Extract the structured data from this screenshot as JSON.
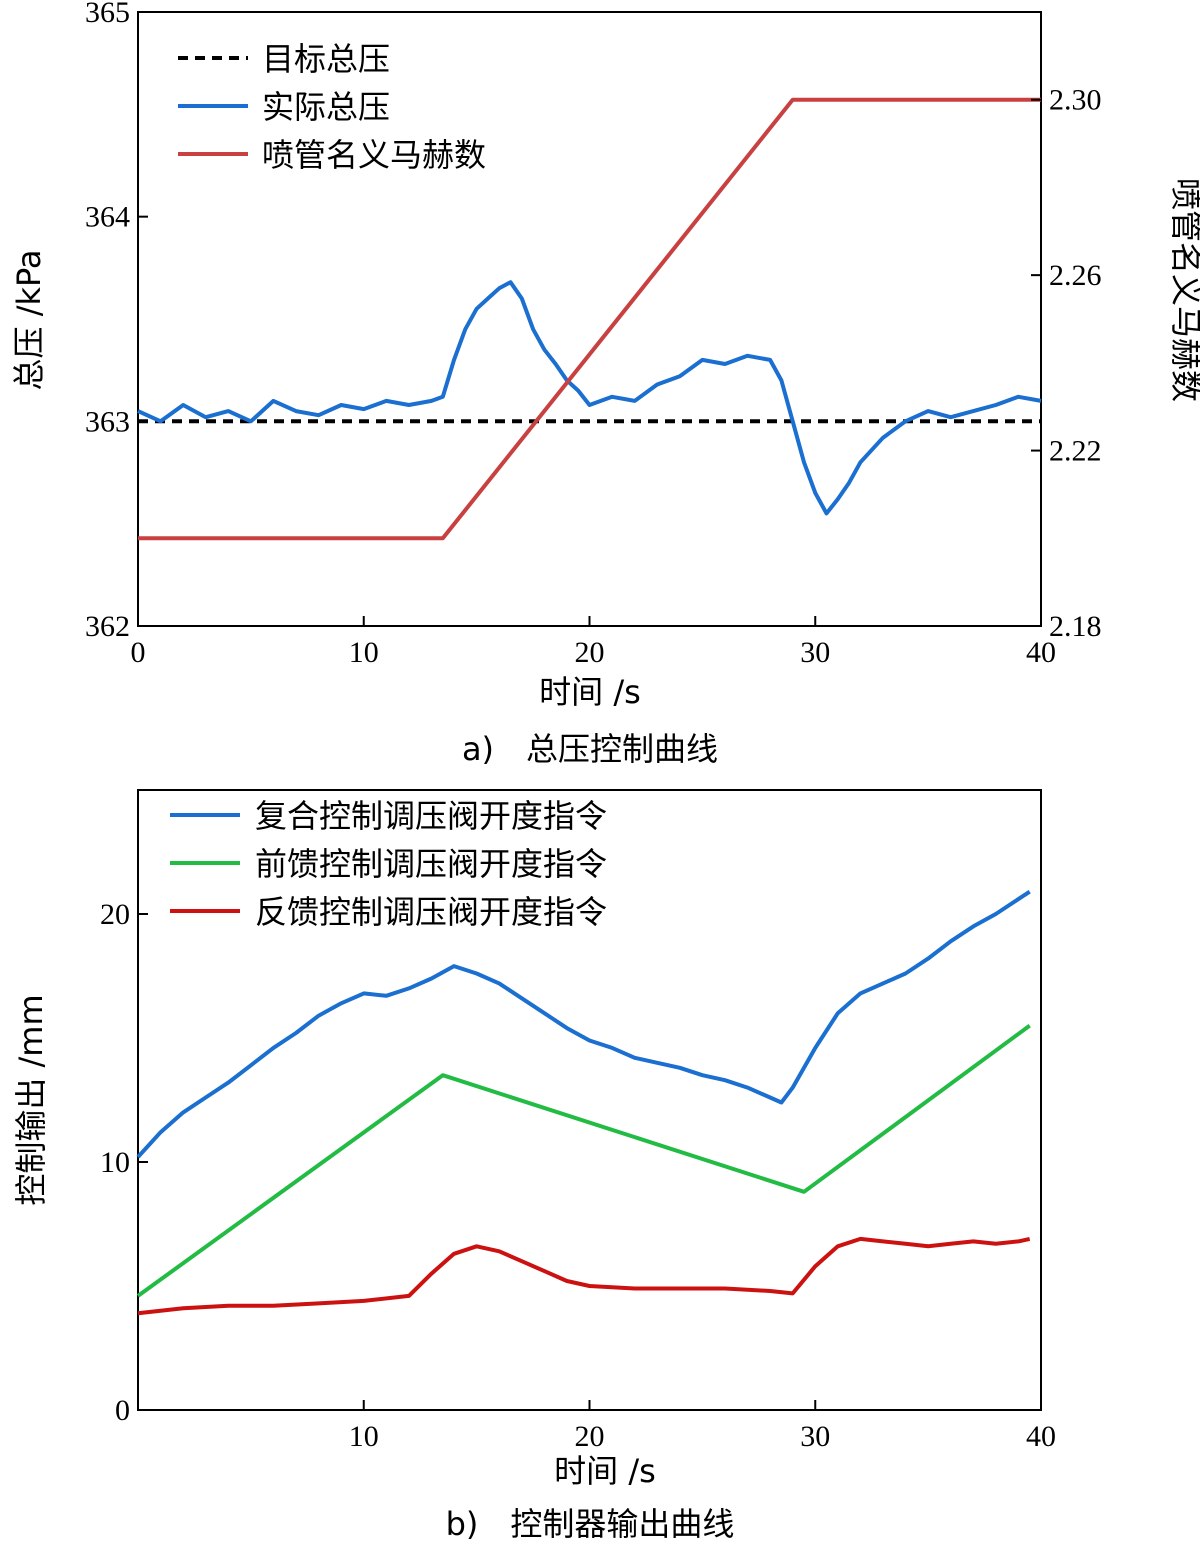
{
  "chart_data": [
    {
      "type": "line",
      "caption": "a)　总压控制曲线",
      "xlabel": "时间 /s",
      "ylabel": "总压 /kPa",
      "y2label": "喷管名义马赫数",
      "xlim": [
        0,
        40
      ],
      "ylim": [
        362,
        365
      ],
      "y2lim": [
        2.18,
        2.32
      ],
      "xticks": [
        "0",
        "10",
        "20",
        "30",
        "40"
      ],
      "yticks": [
        "362",
        "363",
        "364",
        "365"
      ],
      "y2ticks": [
        "2.18",
        "2.22",
        "2.26",
        "2.30"
      ],
      "legend_position": "top-left",
      "grid": false,
      "series": [
        {
          "name": "目标总压",
          "axis": "left",
          "color": "#000000",
          "style": "dashed",
          "x": [
            0,
            40
          ],
          "y": [
            363.0,
            363.0
          ]
        },
        {
          "name": "实际总压",
          "axis": "left",
          "color": "#1a6fd0",
          "style": "solid",
          "x": [
            0,
            1,
            2,
            3,
            4,
            5,
            6,
            7,
            8,
            9,
            10,
            11,
            12,
            13,
            13.5,
            14,
            14.5,
            15,
            15.5,
            16,
            16.5,
            17,
            17.5,
            18,
            18.5,
            19,
            19.5,
            20,
            21,
            22,
            23,
            24,
            25,
            26,
            27,
            28,
            28.5,
            29,
            29.5,
            30,
            30.5,
            31,
            31.5,
            32,
            33,
            34,
            35,
            36,
            37,
            38,
            39,
            40
          ],
          "y": [
            363.05,
            363.0,
            363.08,
            363.02,
            363.05,
            363.0,
            363.1,
            363.05,
            363.03,
            363.08,
            363.06,
            363.1,
            363.08,
            363.1,
            363.12,
            363.3,
            363.45,
            363.55,
            363.6,
            363.65,
            363.68,
            363.6,
            363.45,
            363.35,
            363.28,
            363.2,
            363.15,
            363.08,
            363.12,
            363.1,
            363.18,
            363.22,
            363.3,
            363.28,
            363.32,
            363.3,
            363.2,
            363.0,
            362.8,
            362.65,
            362.55,
            362.62,
            362.7,
            362.8,
            362.92,
            363.0,
            363.05,
            363.02,
            363.05,
            363.08,
            363.12,
            363.1
          ]
        },
        {
          "name": "喷管名义马赫数",
          "axis": "right",
          "color": "#c84040",
          "style": "solid",
          "x": [
            0,
            13.5,
            29,
            40
          ],
          "y": [
            2.2,
            2.2,
            2.3,
            2.3
          ]
        }
      ]
    },
    {
      "type": "line",
      "caption": "b)　控制器输出曲线",
      "xlabel": "时间 /s",
      "ylabel": "控制输出 /mm",
      "xlim": [
        0,
        40
      ],
      "ylim": [
        0,
        25
      ],
      "xticks": [
        "10",
        "20",
        "30",
        "40"
      ],
      "yticks": [
        "0",
        "10",
        "20"
      ],
      "legend_position": "top-left",
      "grid": false,
      "series": [
        {
          "name": "复合控制调压阀开度指令",
          "color": "#1a6fd0",
          "x": [
            0,
            1,
            2,
            3,
            4,
            5,
            6,
            7,
            8,
            9,
            10,
            11,
            12,
            13,
            14,
            15,
            16,
            17,
            18,
            19,
            20,
            21,
            22,
            23,
            24,
            25,
            26,
            27,
            28,
            28.5,
            29,
            30,
            31,
            32,
            33,
            34,
            35,
            36,
            37,
            38,
            39,
            39.5
          ],
          "y": [
            10.2,
            11.2,
            12.0,
            12.6,
            13.2,
            13.9,
            14.6,
            15.2,
            15.9,
            16.4,
            16.8,
            16.7,
            17.0,
            17.4,
            17.9,
            17.6,
            17.2,
            16.6,
            16.0,
            15.4,
            14.9,
            14.6,
            14.2,
            14.0,
            13.8,
            13.5,
            13.3,
            13.0,
            12.6,
            12.4,
            13.0,
            14.6,
            16.0,
            16.8,
            17.2,
            17.6,
            18.2,
            18.9,
            19.5,
            20.0,
            20.6,
            20.9
          ]
        },
        {
          "name": "前馈控制调压阀开度指令",
          "color": "#22bb44",
          "x": [
            0,
            13.5,
            29.5,
            39.5
          ],
          "y": [
            4.6,
            13.5,
            8.8,
            15.5
          ]
        },
        {
          "name": "反馈控制调压阀开度指令",
          "color": "#cc1111",
          "x": [
            0,
            2,
            4,
            6,
            8,
            10,
            12,
            13,
            14,
            15,
            16,
            17,
            18,
            19,
            20,
            22,
            24,
            26,
            28,
            29,
            30,
            31,
            32,
            33,
            34,
            35,
            36,
            37,
            38,
            39,
            39.5
          ],
          "y": [
            3.9,
            4.1,
            4.2,
            4.2,
            4.3,
            4.4,
            4.6,
            5.5,
            6.3,
            6.6,
            6.4,
            6.0,
            5.6,
            5.2,
            5.0,
            4.9,
            4.9,
            4.9,
            4.8,
            4.7,
            5.8,
            6.6,
            6.9,
            6.8,
            6.7,
            6.6,
            6.7,
            6.8,
            6.7,
            6.8,
            6.9
          ]
        }
      ]
    }
  ]
}
